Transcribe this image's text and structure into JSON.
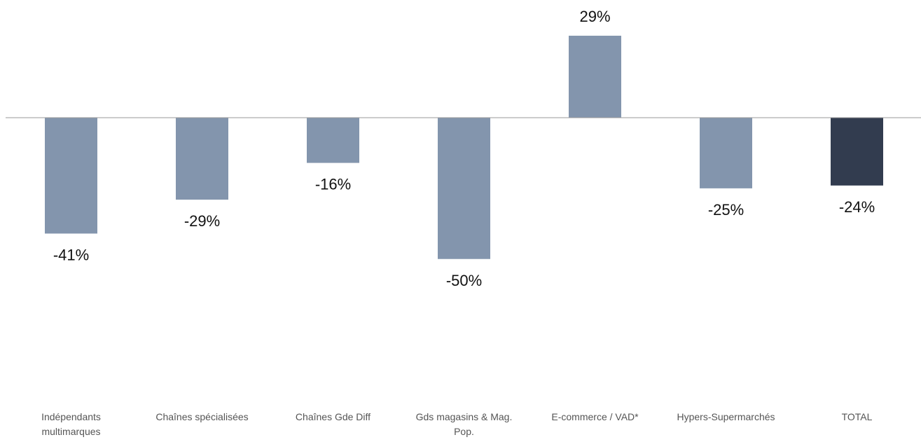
{
  "chart_data": {
    "type": "bar",
    "title": "",
    "xlabel": "",
    "ylabel": "",
    "categories": [
      [
        "Indépendants",
        "multimarques"
      ],
      [
        "Chaînes spécialisées"
      ],
      [
        "Chaînes Gde Diff"
      ],
      [
        "Gds magasins & Mag.",
        "Pop."
      ],
      [
        "E-commerce / VAD*"
      ],
      [
        "Hypers-Supermarchés"
      ],
      [
        "TOTAL"
      ]
    ],
    "values": [
      -41,
      -29,
      -16,
      -50,
      29,
      -25,
      -24
    ],
    "value_labels": [
      "-41%",
      "-29%",
      "-16%",
      "-50%",
      "29%",
      "-25%",
      "-24%"
    ],
    "ylim": [
      -50,
      29
    ],
    "grid": false,
    "legend": "none",
    "colors": {
      "default_bar": "#8395ad",
      "highlight_bar": "#323c4f",
      "baseline": "#999999"
    },
    "highlight_index": 6
  }
}
